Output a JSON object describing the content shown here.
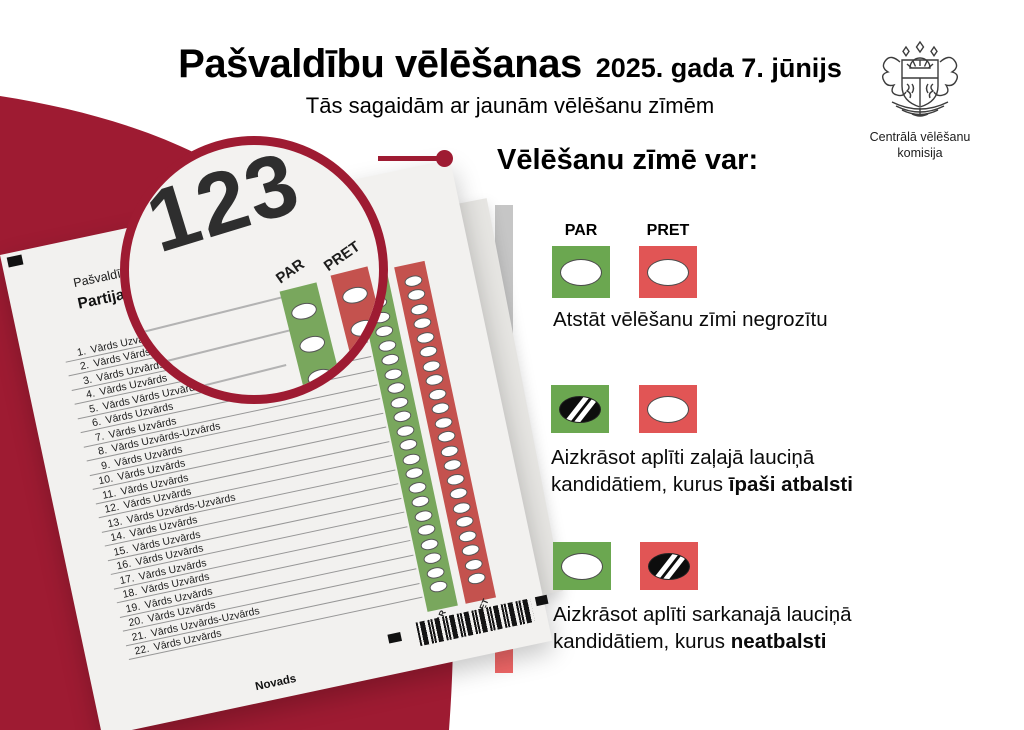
{
  "header": {
    "title": "Pašvaldību vēlēšanas",
    "date": "2025. gada 7. jūnijs",
    "subtitle": "Tās sagaidām ar jaunām vēlēšanu zīmēm"
  },
  "logo": {
    "icon": "latvia-coat-of-arms-icon",
    "caption_line1": "Centrālā vēlēšanu",
    "caption_line2": "komisija"
  },
  "magnifier": {
    "number": "123",
    "par_label": "PAR",
    "pret_label": "PRET"
  },
  "ballot": {
    "header": "Pašvaldības domes vēlēšanas",
    "party": "Partija",
    "col_par": "PAR",
    "col_pret": "PRET",
    "footer": "Novads",
    "candidates": [
      {
        "num": "1.",
        "name": "Vārds Uzvārds"
      },
      {
        "num": "2.",
        "name": "Vārds Vārds Uzvārds-Uzvārds"
      },
      {
        "num": "3.",
        "name": "Vārds Uzvārds"
      },
      {
        "num": "4.",
        "name": "Vārds Uzvārds"
      },
      {
        "num": "5.",
        "name": "Vārds Vārds Uzvārds"
      },
      {
        "num": "6.",
        "name": "Vārds Uzvārds"
      },
      {
        "num": "7.",
        "name": "Vārds Uzvārds"
      },
      {
        "num": "8.",
        "name": "Vārds Uzvārds-Uzvārds"
      },
      {
        "num": "9.",
        "name": "Vārds Uzvārds"
      },
      {
        "num": "10.",
        "name": "Vārds Uzvārds"
      },
      {
        "num": "11.",
        "name": "Vārds Uzvārds"
      },
      {
        "num": "12.",
        "name": "Vārds Uzvārds"
      },
      {
        "num": "13.",
        "name": "Vārds Uzvārds-Uzvārds"
      },
      {
        "num": "14.",
        "name": "Vārds Uzvārds"
      },
      {
        "num": "15.",
        "name": "Vārds Uzvārds"
      },
      {
        "num": "16.",
        "name": "Vārds Uzvārds"
      },
      {
        "num": "17.",
        "name": "Vārds Uzvārds"
      },
      {
        "num": "18.",
        "name": "Vārds Uzvārds"
      },
      {
        "num": "19.",
        "name": "Vārds Uzvārds"
      },
      {
        "num": "20.",
        "name": "Vārds Uzvārds"
      },
      {
        "num": "21.",
        "name": "Vārds Uzvārds-Uzvārds"
      },
      {
        "num": "22.",
        "name": "Vārds Uzvārds"
      }
    ]
  },
  "panel": {
    "heading": "Vēlēšanu zīmē var:",
    "options": [
      {
        "par_label": "PAR",
        "pret_label": "PRET",
        "green_filled": false,
        "red_filled": false,
        "line1": "Atstāt vēlēšanu zīmi negrozītu",
        "line2": "",
        "line2_bold": ""
      },
      {
        "green_filled": true,
        "red_filled": false,
        "line1": "Aizkrāsot aplīti zaļajā lauciņā",
        "line2": "kandidātiem, kurus ",
        "line2_bold": "īpaši atbalsti"
      },
      {
        "green_filled": false,
        "red_filled": true,
        "line1": "Aizkrāsot aplīti sarkanajā lauciņā",
        "line2": "kandidātiem, kurus ",
        "line2_bold": "neatbalsti"
      }
    ]
  },
  "colors": {
    "claret": "#9e1b32",
    "boxGreen": "#6ba750",
    "boxRed": "#e15555",
    "stripGreen": "#79a75d",
    "stripRed": "#c4524e",
    "barGray": "#c6c6c6",
    "barGreen": "#6fa959",
    "barRed": "#ef6767"
  }
}
